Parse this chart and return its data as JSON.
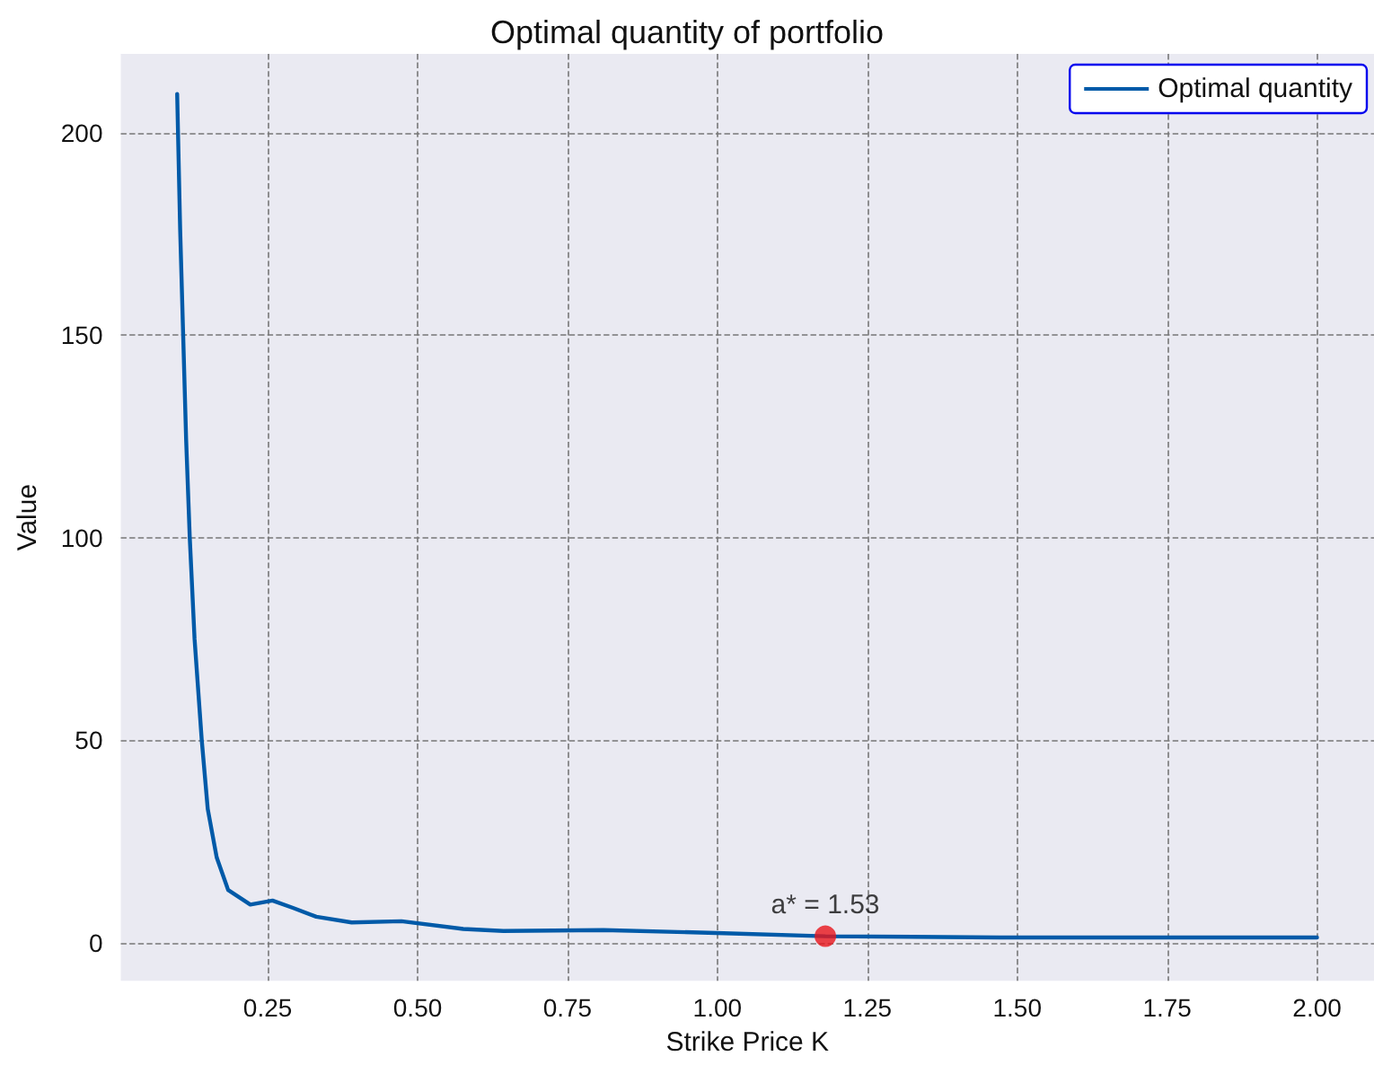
{
  "chart_data": {
    "type": "line",
    "title": "Optimal quantity of portfolio",
    "xlabel": "Strike Price K",
    "ylabel": "Value",
    "xlim": [
      0.005,
      2.095
    ],
    "xticks": [
      0.25,
      {
        "value": 0.5,
        "label": "0.50"
      },
      0.75,
      {
        "value": 1,
        "label": "1.00"
      },
      1.25,
      {
        "value": 1.5,
        "label": "1.50"
      },
      1.75,
      {
        "value": 2,
        "label": "2.00"
      }
    ],
    "ylim": [
      -9.4,
      219.4
    ],
    "yticks": [
      0,
      50,
      100,
      150,
      200
    ],
    "grid": true,
    "legend": "top right",
    "series": [
      {
        "name": "Optimal quantity",
        "color": "#005aa8",
        "marker": "none",
        "x": [
          0.099,
          0.104,
          0.109,
          0.114,
          0.12,
          0.128,
          0.14,
          0.15,
          0.165,
          0.184,
          0.221,
          0.258,
          0.292,
          0.331,
          0.39,
          0.473,
          0.576,
          0.643,
          0.81,
          0.998,
          1.18,
          1.47,
          2.0
        ],
        "values": [
          209.5,
          176,
          150,
          124,
          100,
          75,
          50,
          33,
          21,
          13,
          9.4,
          10.4,
          8.6,
          6.4,
          5.0,
          5.3,
          3.4,
          2.9,
          3.1,
          2.4,
          1.6,
          1.3,
          1.3
        ]
      },
      {
        "type": "scatter",
        "color": "#e8141a",
        "marker": "circle",
        "x": [
          1.18
        ],
        "values": [
          1.6
        ]
      }
    ],
    "annotations": [
      {
        "text": "a* = 1.53",
        "x": 1.18,
        "y": 1.6
      }
    ]
  }
}
